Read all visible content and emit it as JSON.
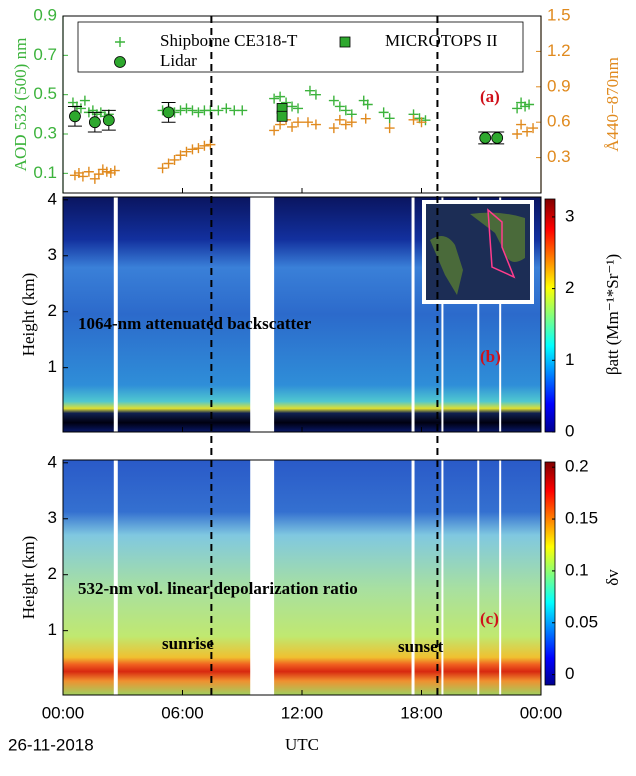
{
  "chart_data": [
    {
      "type": "scatter",
      "panel_label": "(a)",
      "ylabel": "AOD 532 (500) nm",
      "y2label": "Å440−870nm",
      "y_color": "#3cb33c",
      "y2_color": "#e08a1e",
      "ylim": [
        0,
        0.9
      ],
      "yticks": [
        0.1,
        0.3,
        0.5,
        0.7,
        0.9
      ],
      "y2lim": [
        0,
        1.5
      ],
      "y2ticks": [
        0.3,
        0.6,
        0.9,
        1.2,
        1.5
      ],
      "xlim": [
        0,
        24
      ],
      "vlines": [
        7.45,
        18.8
      ],
      "series": [
        {
          "name": "Shipborne CE318-T",
          "marker": "plus",
          "color": "#3cb33c",
          "x": [
            0.5,
            0.7,
            0.9,
            1.1,
            1.3,
            1.5,
            1.7,
            1.9,
            2.1,
            2.3,
            5.0,
            5.3,
            5.6,
            5.9,
            6.2,
            6.5,
            6.8,
            7.1,
            7.4,
            7.8,
            8.2,
            8.6,
            9.0,
            10.6,
            10.9,
            11.2,
            11.5,
            11.8,
            12.4,
            12.7,
            13.6,
            13.9,
            14.2,
            14.5,
            15.1,
            15.3,
            16.1,
            16.4,
            17.6,
            17.9,
            18.2,
            22.8,
            23.0,
            23.2,
            23.4
          ],
          "values": [
            0.46,
            0.44,
            0.43,
            0.47,
            0.41,
            0.42,
            0.4,
            0.41,
            0.39,
            0.4,
            0.42,
            0.43,
            0.41,
            0.42,
            0.43,
            0.42,
            0.41,
            0.42,
            0.42,
            0.42,
            0.43,
            0.42,
            0.42,
            0.48,
            0.49,
            0.46,
            0.44,
            0.43,
            0.52,
            0.5,
            0.47,
            0.44,
            0.42,
            0.4,
            0.47,
            0.45,
            0.41,
            0.38,
            0.4,
            0.38,
            0.37,
            0.43,
            0.46,
            0.44,
            0.45
          ]
        },
        {
          "marker": "plus",
          "color": "#e08a1e",
          "axis": "y2",
          "x": [
            0.6,
            0.8,
            1.0,
            1.3,
            1.6,
            1.8,
            2.0,
            2.2,
            2.4,
            2.6,
            5.0,
            5.3,
            5.6,
            5.9,
            6.2,
            6.5,
            6.8,
            7.1,
            7.4,
            10.6,
            10.9,
            11.2,
            11.5,
            11.8,
            12.3,
            12.7,
            13.6,
            13.9,
            14.2,
            14.5,
            15.2,
            16.4,
            17.6,
            18.0,
            22.8,
            23.0,
            23.3,
            23.6
          ],
          "values": [
            0.15,
            0.17,
            0.14,
            0.18,
            0.12,
            0.16,
            0.2,
            0.18,
            0.17,
            0.19,
            0.21,
            0.25,
            0.28,
            0.32,
            0.35,
            0.37,
            0.38,
            0.4,
            0.41,
            0.53,
            0.58,
            0.62,
            0.56,
            0.6,
            0.6,
            0.58,
            0.55,
            0.62,
            0.58,
            0.6,
            0.63,
            0.55,
            0.62,
            0.6,
            0.5,
            0.58,
            0.52,
            0.55
          ]
        },
        {
          "name": "MICROTOPS II",
          "marker": "square",
          "color": "#2ea82e",
          "x": [
            11.0,
            11.0
          ],
          "values": [
            0.43,
            0.39
          ]
        },
        {
          "name": "Lidar",
          "marker": "circle",
          "color": "#2ea82e",
          "x": [
            0.6,
            1.6,
            2.3,
            5.3,
            21.2,
            21.8
          ],
          "values": [
            0.39,
            0.36,
            0.37,
            0.41,
            0.28,
            0.28
          ],
          "errors": [
            0.05,
            0.05,
            0.05,
            0.05,
            0.03,
            0.03
          ]
        }
      ]
    },
    {
      "type": "heatmap",
      "panel_label": "(b)",
      "ylabel": "Height (km)",
      "annotation": "1064-nm attenuated backscatter",
      "ylim": [
        -0.15,
        4.05
      ],
      "yticks": [
        1,
        2,
        3,
        4
      ],
      "xlim": [
        0,
        24
      ],
      "colorbar_label": "βatt (Mm⁻¹*Sr⁻¹)",
      "clim": [
        0,
        3.25
      ],
      "cticks": [
        0,
        1,
        2,
        3
      ],
      "gaps": [
        [
          2.55,
          2.75
        ],
        [
          9.4,
          10.6
        ],
        [
          17.5,
          17.65
        ],
        [
          19.0,
          19.1
        ],
        [
          20.8,
          20.9
        ],
        [
          21.9,
          22.0
        ]
      ]
    },
    {
      "type": "heatmap",
      "panel_label": "(c)",
      "ylabel": "Height (km)",
      "annotation": "532-nm vol. linear depolarization ratio",
      "ylim": [
        -0.15,
        4.05
      ],
      "yticks": [
        1,
        2,
        3,
        4
      ],
      "xlim": [
        0,
        24
      ],
      "colorbar_label": "δv",
      "clim": [
        -0.01,
        0.205
      ],
      "cticks": [
        0,
        0.05,
        0.1,
        0.15,
        0.2
      ],
      "gaps": [
        [
          2.55,
          2.75
        ],
        [
          9.4,
          10.6
        ],
        [
          17.5,
          17.65
        ],
        [
          19.0,
          19.1
        ],
        [
          20.8,
          20.9
        ],
        [
          21.9,
          22.0
        ]
      ],
      "markers": [
        "sunrise",
        "sunset"
      ],
      "xlabel": "UTC",
      "date": "26-11-2018",
      "xticks": [
        {
          "value": 0,
          "label": "00:00"
        },
        {
          "value": 6,
          "label": "06:00"
        },
        {
          "value": 12,
          "label": "12:00"
        },
        {
          "value": 18,
          "label": "18:00"
        },
        {
          "value": 24,
          "label": "00:00"
        }
      ]
    }
  ]
}
